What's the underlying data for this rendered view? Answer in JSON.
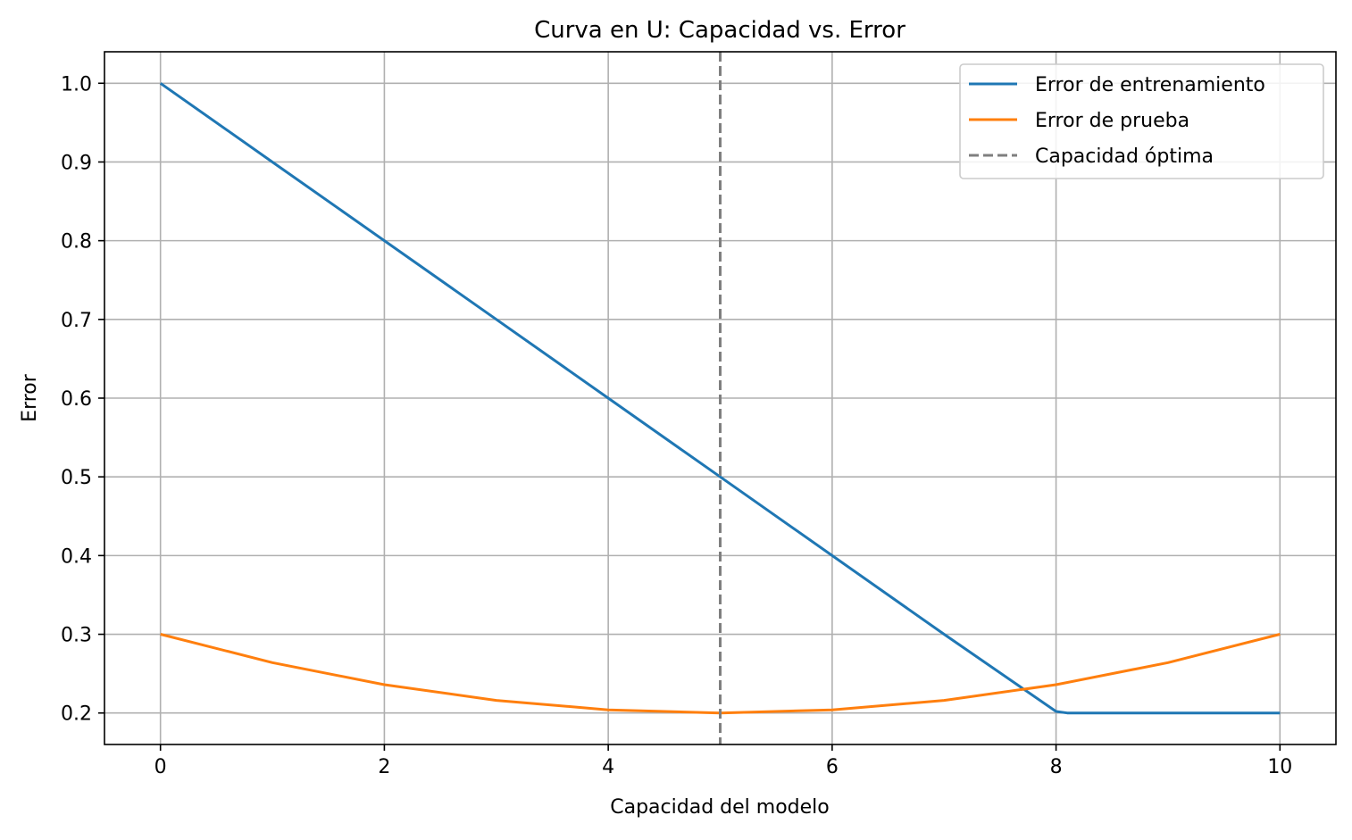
{
  "chart_data": {
    "type": "line",
    "title": "Curva en U: Capacidad vs. Error",
    "xlabel": "Capacidad del modelo",
    "ylabel": "Error",
    "xlim": [
      -0.5,
      10.5
    ],
    "ylim": [
      0.16,
      1.04
    ],
    "xticks": [
      0,
      2,
      4,
      6,
      8,
      10
    ],
    "yticks": [
      0.2,
      0.3,
      0.4,
      0.5,
      0.6,
      0.7,
      0.8,
      0.9,
      1.0
    ],
    "grid": true,
    "legend_position": "top-right",
    "series": [
      {
        "name": "Error de entrenamiento",
        "color": "#1f77b4",
        "style": "solid",
        "x": [
          0,
          1,
          2,
          3,
          4,
          5,
          6,
          7,
          8,
          8.1,
          9,
          10
        ],
        "y": [
          1.0,
          0.9,
          0.8,
          0.7,
          0.6,
          0.5,
          0.4,
          0.3,
          0.202,
          0.2,
          0.2,
          0.2
        ]
      },
      {
        "name": "Error de prueba",
        "color": "#ff7f0e",
        "style": "solid",
        "x": [
          0,
          1,
          2,
          3,
          4,
          5,
          6,
          7,
          8,
          9,
          10
        ],
        "y": [
          0.3,
          0.264,
          0.236,
          0.216,
          0.204,
          0.2,
          0.204,
          0.216,
          0.236,
          0.264,
          0.3
        ]
      }
    ],
    "vlines": [
      {
        "name": "Capacidad óptima",
        "x": 5,
        "color": "#7f7f7f",
        "style": "dashed"
      }
    ]
  }
}
